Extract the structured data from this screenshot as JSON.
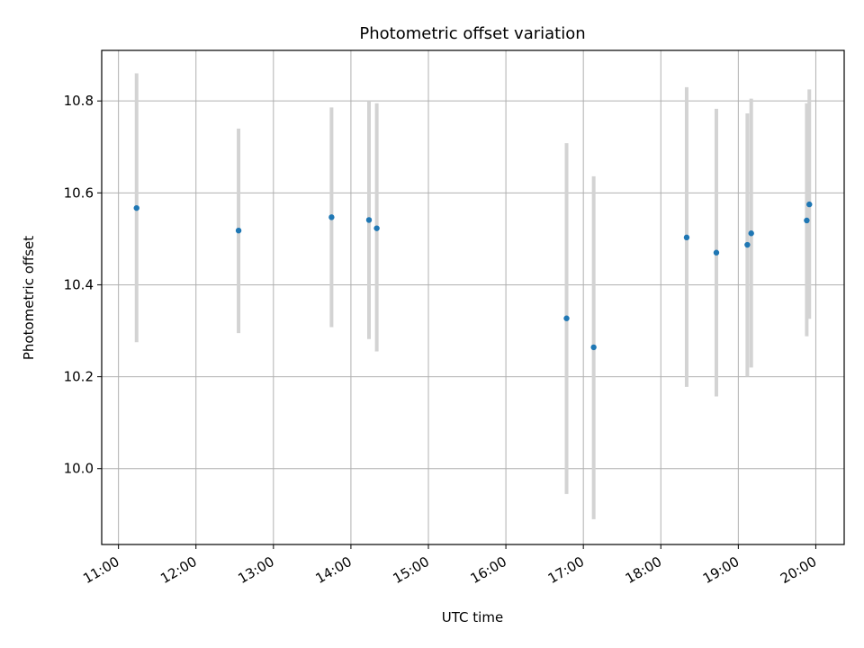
{
  "chart_data": {
    "type": "scatter",
    "title": "Photometric offset variation",
    "xlabel": "UTC time",
    "ylabel": "Photometric offset",
    "x_tick_labels": [
      "11:00",
      "12:00",
      "13:00",
      "14:00",
      "15:00",
      "16:00",
      "17:00",
      "18:00",
      "19:00",
      "20:00"
    ],
    "y_tick_labels": [
      "10.0",
      "10.2",
      "10.4",
      "10.6",
      "10.8"
    ],
    "y_ticks": [
      10.0,
      10.2,
      10.4,
      10.6,
      10.8
    ],
    "xlim": [
      "10:47",
      "20:22"
    ],
    "ylim": [
      9.835,
      10.91
    ],
    "grid": true,
    "legend": false,
    "colors": {
      "point": "#1f77b4",
      "errorbar": "#d3d3d3",
      "grid": "#b0b0b0"
    },
    "points": [
      {
        "x": "11:14",
        "y": 10.567,
        "err_low": 10.275,
        "err_high": 10.86
      },
      {
        "x": "12:33",
        "y": 10.518,
        "err_low": 10.295,
        "err_high": 10.74
      },
      {
        "x": "13:45",
        "y": 10.547,
        "err_low": 10.308,
        "err_high": 10.786
      },
      {
        "x": "14:14",
        "y": 10.541,
        "err_low": 10.282,
        "err_high": 10.8
      },
      {
        "x": "14:20",
        "y": 10.523,
        "err_low": 10.255,
        "err_high": 10.795
      },
      {
        "x": "16:47",
        "y": 10.327,
        "err_low": 9.945,
        "err_high": 10.708
      },
      {
        "x": "17:08",
        "y": 10.264,
        "err_low": 9.89,
        "err_high": 10.636
      },
      {
        "x": "18:20",
        "y": 10.503,
        "err_low": 10.178,
        "err_high": 10.83
      },
      {
        "x": "18:43",
        "y": 10.47,
        "err_low": 10.157,
        "err_high": 10.783
      },
      {
        "x": "19:07",
        "y": 10.487,
        "err_low": 10.2,
        "err_high": 10.773
      },
      {
        "x": "19:10",
        "y": 10.512,
        "err_low": 10.22,
        "err_high": 10.805
      },
      {
        "x": "19:53",
        "y": 10.54,
        "err_low": 10.288,
        "err_high": 10.795
      },
      {
        "x": "19:55",
        "y": 10.575,
        "err_low": 10.326,
        "err_high": 10.825
      }
    ]
  }
}
